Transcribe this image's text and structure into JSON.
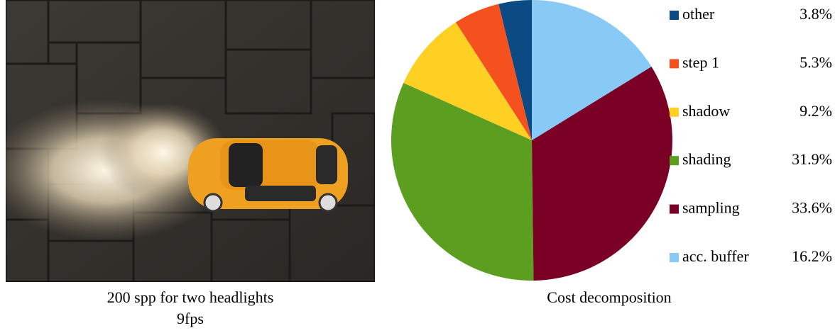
{
  "left_panel": {
    "caption_lines": [
      "200 spp for two headlights",
      "9fps"
    ]
  },
  "chart_data": {
    "type": "pie",
    "title": "Cost decomposition",
    "categories": [
      "other",
      "step 1",
      "shadow",
      "shading",
      "sampling",
      "acc. buffer"
    ],
    "values": [
      3.8,
      5.3,
      9.2,
      31.9,
      33.6,
      16.2
    ],
    "value_labels": [
      "3.8%",
      "5.3%",
      "9.2%",
      "31.9%",
      "33.6%",
      "16.2%"
    ],
    "colors": [
      "#0b4a82",
      "#f4511e",
      "#fdd023",
      "#5c9e1f",
      "#7a0026",
      "#88c9f5"
    ]
  }
}
